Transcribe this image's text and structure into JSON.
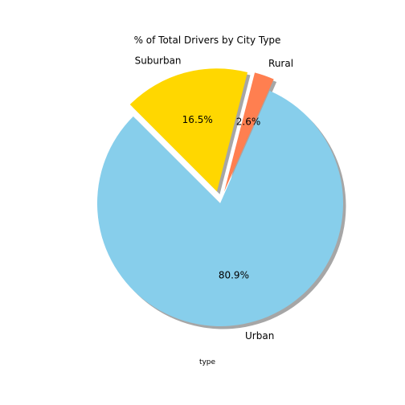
{
  "chart_data": {
    "type": "pie",
    "title": "% of Total Drivers by City Type",
    "xlabel": "type",
    "categories": [
      "Urban",
      "Rural",
      "Suburban"
    ],
    "values": [
      80.9,
      2.6,
      16.5
    ],
    "percent_labels": [
      "80.9%",
      "2.6%",
      "16.5%"
    ],
    "colors": [
      "#87CEEB",
      "#FF7F50",
      "#FFD700"
    ],
    "explode": [
      0,
      0.1,
      0.1
    ],
    "shadow": true,
    "start_angle_deg": 135,
    "counterclockwise": true
  }
}
